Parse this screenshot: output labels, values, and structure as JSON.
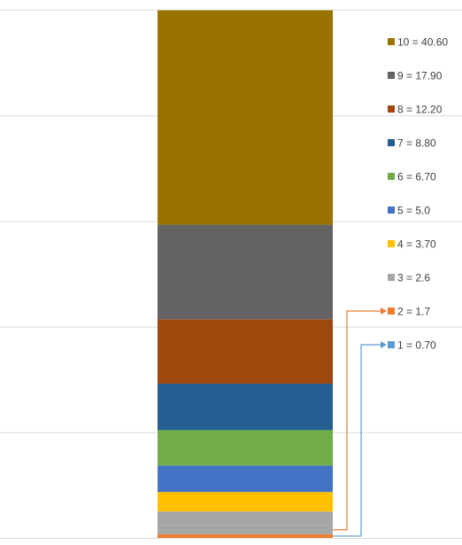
{
  "chart_data": {
    "type": "bar",
    "stacked": true,
    "categories": [
      ""
    ],
    "ylim": [
      0,
      100
    ],
    "grid": true,
    "gridlines": [
      0,
      20,
      40,
      60,
      80,
      100
    ],
    "legend_position": "right",
    "series": [
      {
        "name": "1 = 0.70",
        "values": [
          0.7
        ],
        "color": "#ED7D31",
        "legend_color": "#5B9BD5"
      },
      {
        "name": "2 = 1.7",
        "values": [
          1.7
        ],
        "color": "#A5A5A5",
        "legend_color": "#ED7D31"
      },
      {
        "name": "3 = 2.6",
        "values": [
          2.6
        ],
        "color": "#A5A5A5",
        "legend_color": "#A5A5A5"
      },
      {
        "name": "4 = 3.70",
        "values": [
          3.7
        ],
        "color": "#FFC000",
        "legend_color": "#FFC000"
      },
      {
        "name": "5 = 5.0",
        "values": [
          5.0
        ],
        "color": "#4472C4",
        "legend_color": "#4472C4"
      },
      {
        "name": "6 = 6.70",
        "values": [
          6.7
        ],
        "color": "#70AD47",
        "legend_color": "#70AD47"
      },
      {
        "name": "7 = 8.80",
        "values": [
          8.8
        ],
        "color": "#255E91",
        "legend_color": "#255E91"
      },
      {
        "name": "8 = 12.20",
        "values": [
          12.2
        ],
        "color": "#9E480E",
        "legend_color": "#9E480E"
      },
      {
        "name": "9 = 17.90",
        "values": [
          17.9
        ],
        "color": "#636363",
        "legend_color": "#636363"
      },
      {
        "name": "10 = 40.60",
        "values": [
          40.6
        ],
        "color": "#997300",
        "legend_color": "#997300"
      }
    ],
    "callout_series": [
      "1 = 0.70",
      "2 = 1.7"
    ],
    "callout_colors": {
      "1 = 0.70": "#5B9BD5",
      "2 = 1.7": "#ED7D31"
    }
  }
}
